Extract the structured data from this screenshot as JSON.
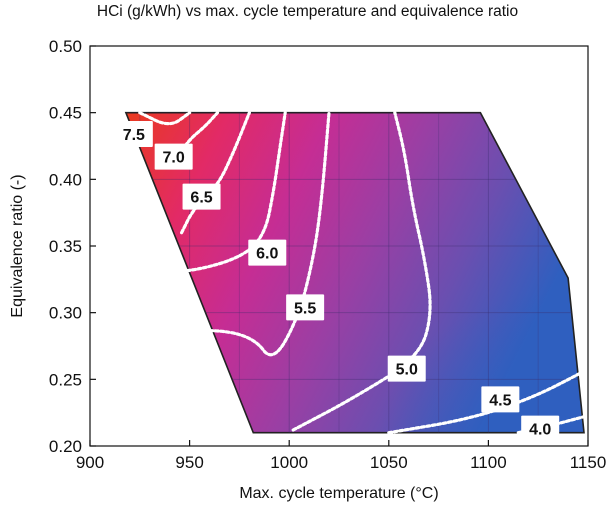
{
  "chart_data": {
    "type": "contour",
    "title": "HCi (g/kWh) vs max. cycle temperature and equivalence ratio",
    "xlabel": "Max. cycle temperature (°C)",
    "ylabel": "Equivalence ratio (-)",
    "xlim": [
      900,
      1150
    ],
    "ylim": [
      0.2,
      0.5
    ],
    "x_ticks": [
      "900",
      "950",
      "1000",
      "1050",
      "1100",
      "1150"
    ],
    "y_ticks": [
      "0.20",
      "0.25",
      "0.30",
      "0.35",
      "0.40",
      "0.45",
      "0.50"
    ],
    "grid": true,
    "colormap": [
      "#2f5fbf",
      "#6a4fb0",
      "#9a3fa4",
      "#c52d94",
      "#e22a66",
      "#ea3a1e"
    ],
    "domain_boundary": [
      [
        918,
        0.45
      ],
      [
        1096,
        0.45
      ],
      [
        1140,
        0.326
      ],
      [
        1148,
        0.21
      ],
      [
        982,
        0.21
      ]
    ],
    "contour_levels": [
      {
        "label": "7.5",
        "value": 7.5,
        "points": [
          [
            925,
            0.45
          ],
          [
            940,
            0.439
          ],
          [
            950,
            0.45
          ]
        ],
        "label_at": [
          922,
          0.434
        ]
      },
      {
        "label": "7.0",
        "value": 7.0,
        "points": [
          [
            943,
            0.415
          ],
          [
            950,
            0.43
          ],
          [
            958,
            0.44
          ],
          [
            964,
            0.45
          ]
        ],
        "label_at": [
          942,
          0.417
        ]
      },
      {
        "label": "6.5",
        "value": 6.5,
        "points": [
          [
            946,
            0.36
          ],
          [
            952,
            0.378
          ],
          [
            964,
            0.395
          ],
          [
            972,
            0.42
          ],
          [
            980,
            0.45
          ]
        ],
        "label_at": [
          956,
          0.387
        ]
      },
      {
        "label": "6.0",
        "value": 6.0,
        "points": [
          [
            935,
            0.33
          ],
          [
            955,
            0.332
          ],
          [
            978,
            0.343
          ],
          [
            988,
            0.36
          ],
          [
            992,
            0.39
          ],
          [
            995,
            0.42
          ],
          [
            998,
            0.45
          ]
        ],
        "label_at": [
          989,
          0.345
        ]
      },
      {
        "label": "5.5",
        "value": 5.5,
        "points": [
          [
            941,
            0.282
          ],
          [
            960,
            0.288
          ],
          [
            982,
            0.282
          ],
          [
            992,
            0.262
          ],
          [
            1005,
            0.298
          ],
          [
            1012,
            0.34
          ],
          [
            1016,
            0.38
          ],
          [
            1020,
            0.45
          ]
        ],
        "label_at": [
          1008,
          0.304
        ]
      },
      {
        "label": "5.0",
        "value": 5.0,
        "points": [
          [
            1002,
            0.212
          ],
          [
            1030,
            0.234
          ],
          [
            1065,
            0.266
          ],
          [
            1072,
            0.3
          ],
          [
            1068,
            0.34
          ],
          [
            1062,
            0.38
          ],
          [
            1058,
            0.42
          ],
          [
            1053,
            0.45
          ]
        ],
        "label_at": [
          1059,
          0.258
        ]
      },
      {
        "label": "4.5",
        "value": 4.5,
        "points": [
          [
            1050,
            0.21
          ],
          [
            1090,
            0.22
          ],
          [
            1122,
            0.236
          ],
          [
            1148,
            0.256
          ]
        ],
        "label_at": [
          1106,
          0.235
        ]
      },
      {
        "label": "4.0",
        "value": 4.0,
        "points": [
          [
            1115,
            0.21
          ],
          [
            1128,
            0.214
          ],
          [
            1148,
            0.222
          ]
        ],
        "label_at": [
          1126,
          0.213
        ]
      }
    ]
  }
}
